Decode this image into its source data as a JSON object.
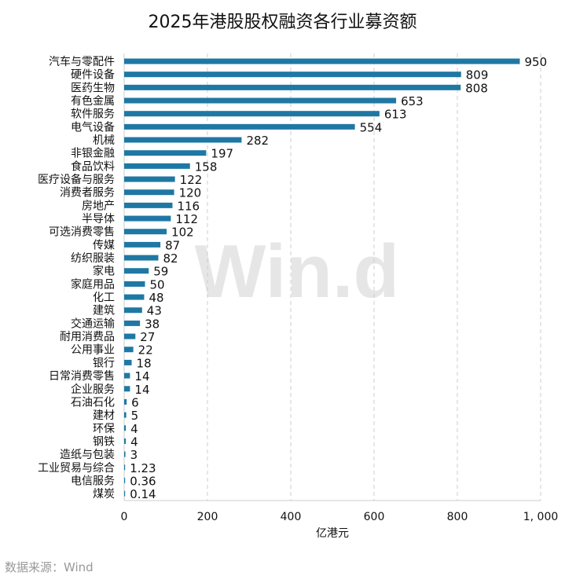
{
  "chart_data": {
    "type": "bar",
    "orientation": "horizontal",
    "title": "2025年港股股权融资各行业募资额",
    "xlabel": "亿港元",
    "ylabel": "",
    "xlim": [
      0,
      1000
    ],
    "xticks": [
      "0",
      "200",
      "400",
      "600",
      "800",
      "1, 000"
    ],
    "xtick_values": [
      0,
      200,
      400,
      600,
      800,
      1000
    ],
    "grid": "vertical dashed",
    "bar_color": "#1f78a4",
    "categories": [
      "汽车与零配件",
      "硬件设备",
      "医药生物",
      "有色金属",
      "软件服务",
      "电气设备",
      "机械",
      "非银金融",
      "食品饮料",
      "医疗设备与服务",
      "消费者服务",
      "房地产",
      "半导体",
      "可选消费零售",
      "传媒",
      "纺织服装",
      "家电",
      "家庭用品",
      "化工",
      "建筑",
      "交通运输",
      "耐用消费品",
      "公用事业",
      "银行",
      "日常消费零售",
      "企业服务",
      "石油石化",
      "建材",
      "环保",
      "钢铁",
      "造纸与包装",
      "工业贸易与综合",
      "电信服务",
      "煤炭"
    ],
    "values": [
      950,
      809,
      808,
      653,
      613,
      554,
      282,
      197,
      158,
      122,
      120,
      116,
      112,
      102,
      87,
      82,
      59,
      50,
      48,
      43,
      38,
      27,
      22,
      18,
      14,
      14,
      6,
      5,
      4,
      4,
      3,
      1.23,
      0.36,
      0.14
    ],
    "value_labels": [
      "950",
      "809",
      "808",
      "653",
      "613",
      "554",
      "282",
      "197",
      "158",
      "122",
      "120",
      "116",
      "112",
      "102",
      "87",
      "82",
      "59",
      "50",
      "48",
      "43",
      "38",
      "27",
      "22",
      "18",
      "14",
      "14",
      "6",
      "5",
      "4",
      "4",
      "3",
      "1.23",
      "0.36",
      "0.14"
    ]
  },
  "watermark": "Wind",
  "source": "数据来源：Wind"
}
